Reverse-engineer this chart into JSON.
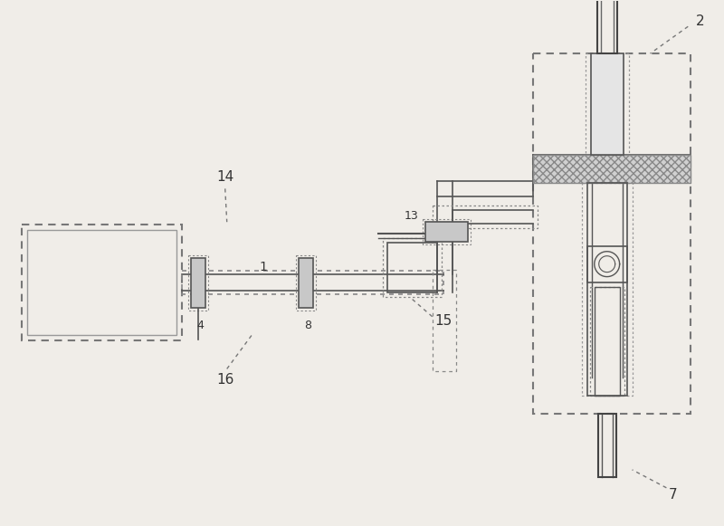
{
  "bg_color": "#f0ede8",
  "line_color": "#555555",
  "fig_width": 8.0,
  "fig_height": 5.81,
  "dpi": 100
}
